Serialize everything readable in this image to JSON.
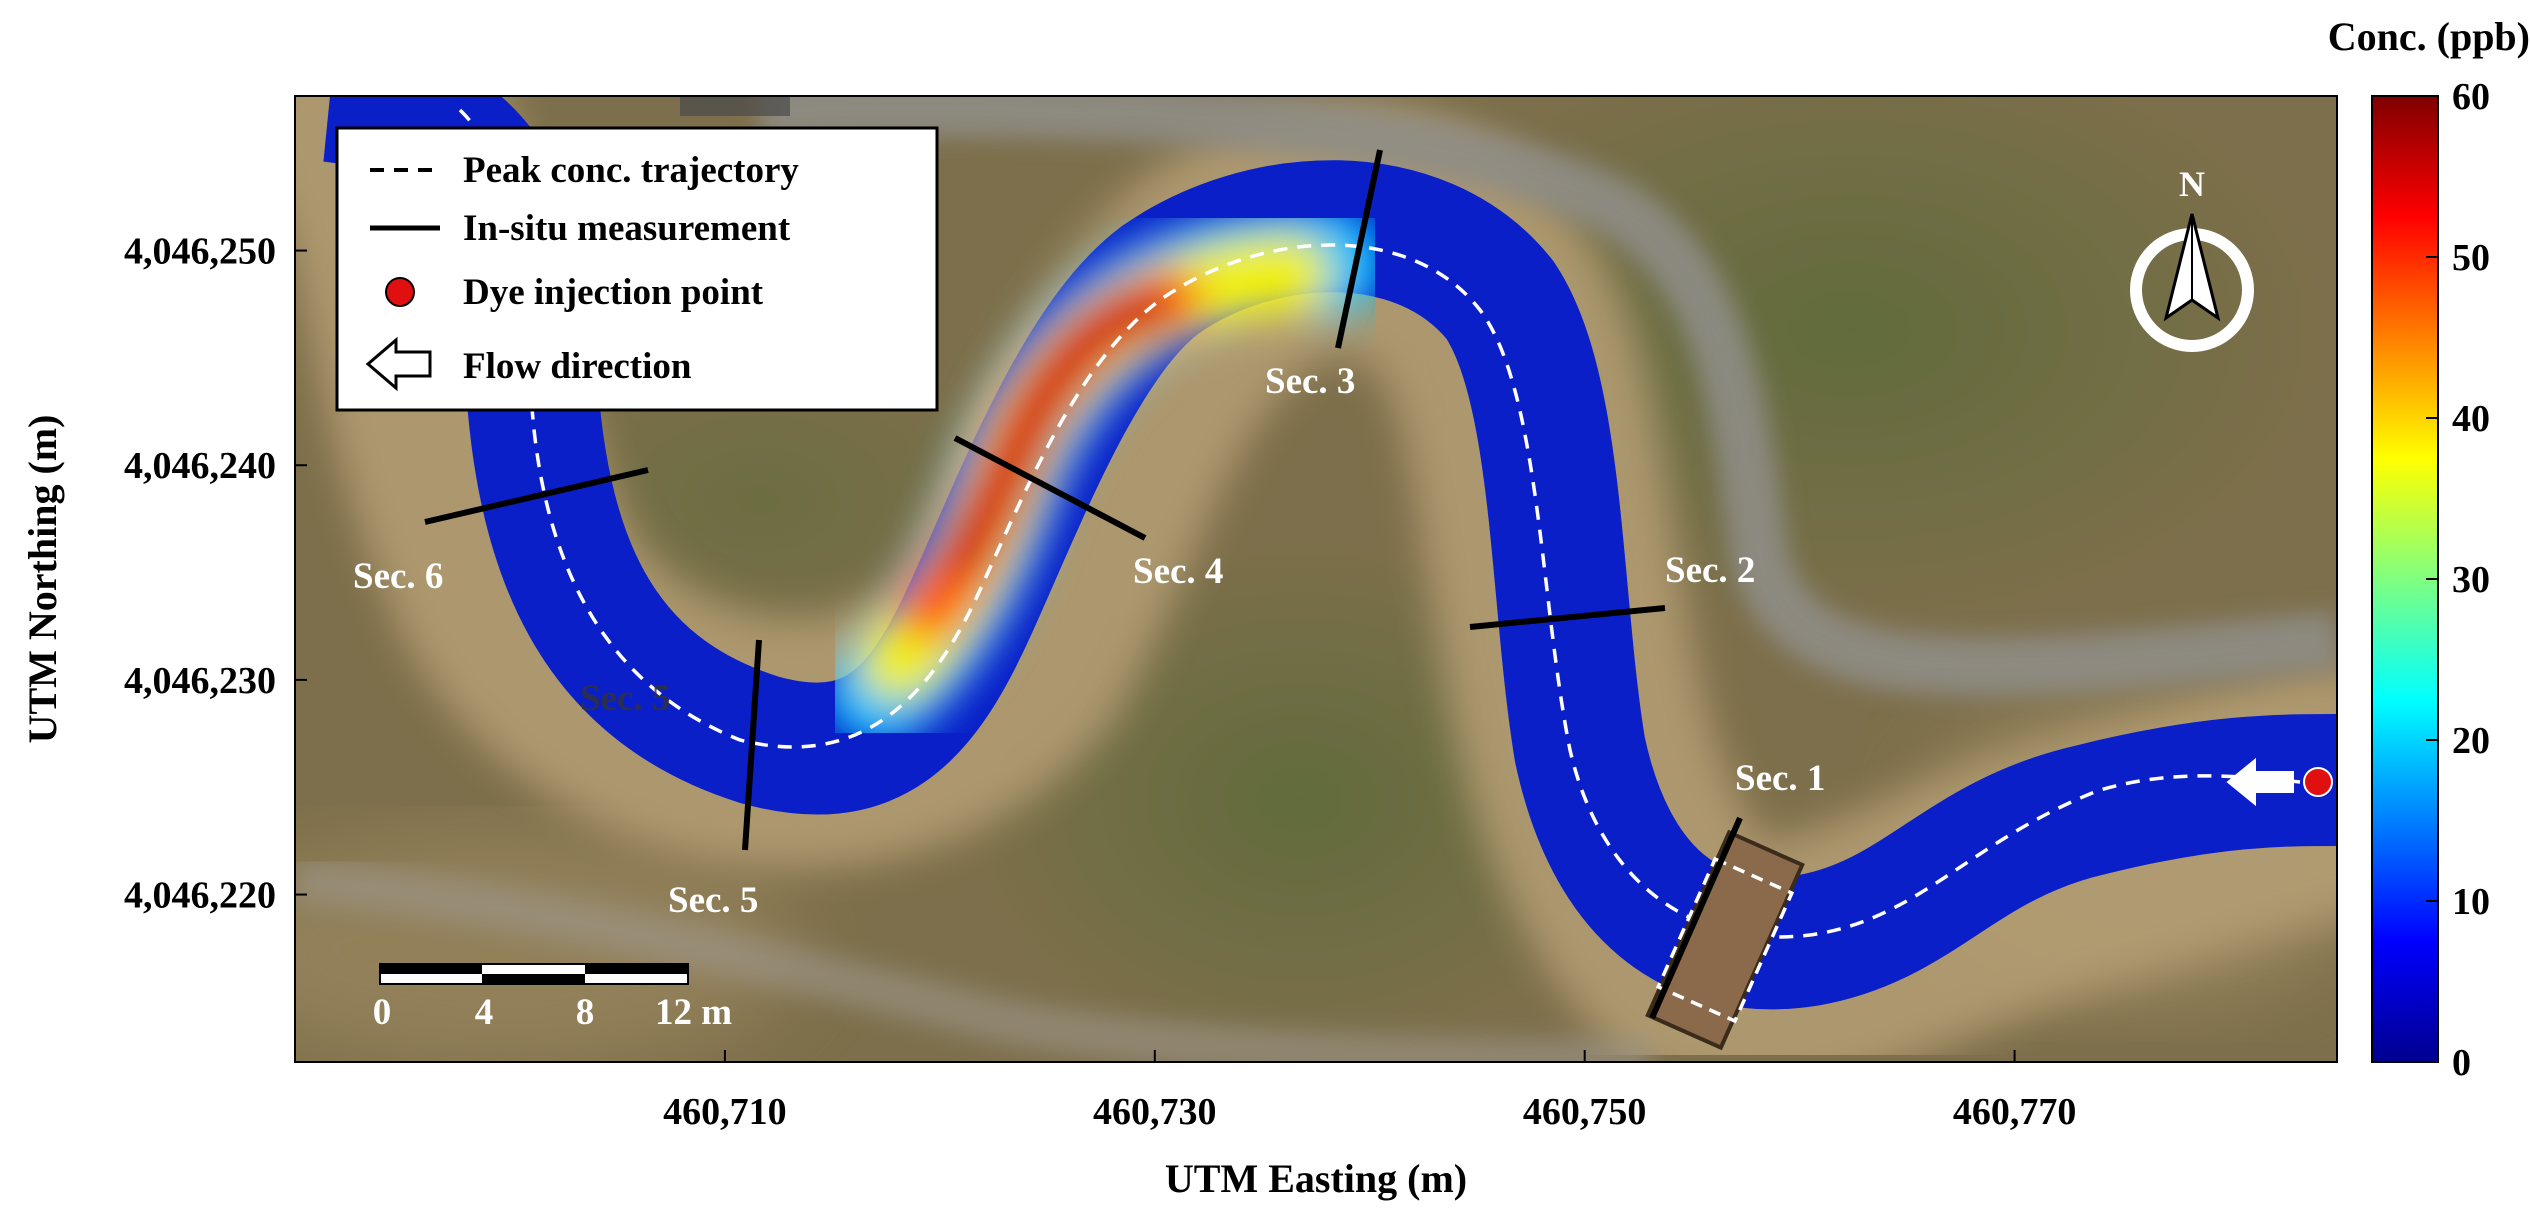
{
  "map": {
    "xlabel": "UTM Easting (m)",
    "ylabel": "UTM Northing (m)",
    "x_ticks": [
      {
        "value": 460710,
        "label": "460,710"
      },
      {
        "value": 460730,
        "label": "460,730"
      },
      {
        "value": 460750,
        "label": "460,750"
      },
      {
        "value": 460770,
        "label": "460,770"
      }
    ],
    "y_ticks": [
      {
        "value": 4046250,
        "label": "4,046,250"
      },
      {
        "value": 4046240,
        "label": "4,046,240"
      },
      {
        "value": 4046230,
        "label": "4,046,230"
      },
      {
        "value": 4046220,
        "label": "4,046,220"
      }
    ],
    "xlim": [
      460690,
      460785
    ],
    "ylim": [
      4046212.2,
      4046257.2
    ],
    "north_label": "N"
  },
  "colorbar": {
    "title": "Conc. (ppb)",
    "range": [
      0,
      60
    ],
    "ticks": [
      "0",
      "10",
      "20",
      "30",
      "40",
      "50",
      "60"
    ],
    "colormap": "jet"
  },
  "legend": {
    "entries": [
      {
        "symbol": "dashed-line",
        "label": "Peak conc. trajectory"
      },
      {
        "symbol": "solid-line",
        "label": "In-situ measurement"
      },
      {
        "symbol": "red-dot",
        "label": "Dye injection point"
      },
      {
        "symbol": "arrow-left",
        "label": "Flow direction"
      }
    ]
  },
  "sections": [
    {
      "label": "Sec. 1"
    },
    {
      "label": "Sec. 2"
    },
    {
      "label": "Sec. 3"
    },
    {
      "label": "Sec. 4"
    },
    {
      "label": "Sec. 5"
    },
    {
      "label": "Sec. 5"
    },
    {
      "label": "Sec. 6"
    }
  ],
  "scale_bar": {
    "labels": [
      "0",
      "4",
      "8",
      "12 m"
    ]
  },
  "colors": {
    "river_low": "#0a1fc8",
    "peak_high": "#c80000",
    "injection_point": "#e01010",
    "ground": "#7a6c48",
    "road": "#8e8e8e"
  }
}
